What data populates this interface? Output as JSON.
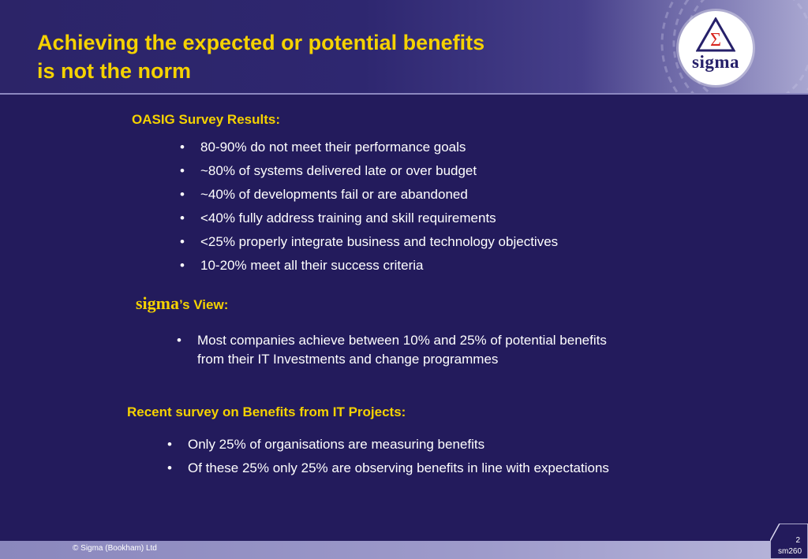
{
  "header": {
    "title_line1": "Achieving the expected or potential benefits",
    "title_line2": "is not the norm",
    "logo_text": "sigma",
    "logo_symbol": "Σ"
  },
  "survey": {
    "heading": "OASIG Survey Results:",
    "items": [
      "80-90% do not meet their performance goals",
      "~80% of systems delivered late or over budget",
      "~40% of developments fail or are abandoned",
      "<40% fully address training and skill requirements",
      "<25% properly integrate business and technology objectives",
      "10-20% meet all their success criteria"
    ]
  },
  "sigma_view": {
    "heading_brand": "sigma",
    "heading_rest": "’s View:",
    "items": [
      "Most companies achieve between 10% and 25% of potential benefits",
      "from their IT Investments and change programmes"
    ]
  },
  "recent": {
    "heading": "Recent survey on Benefits from IT Projects:",
    "items": [
      "Only 25% of organisations are measuring benefits",
      "Of these 25% only 25% are observing benefits in line with expectations"
    ]
  },
  "footer": {
    "copyright": "© Sigma (Bookham) Ltd",
    "page_number": "2",
    "reference": "sm260"
  },
  "colors": {
    "background": "#231b5c",
    "accent": "#f5d200",
    "text": "#ffffff"
  }
}
